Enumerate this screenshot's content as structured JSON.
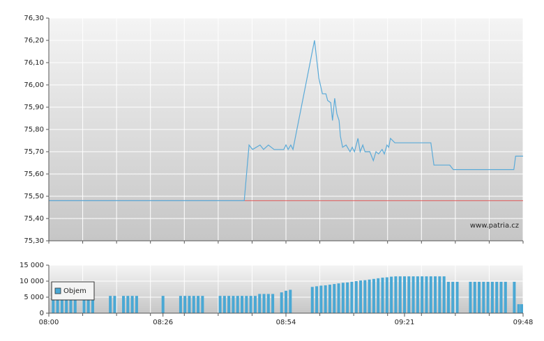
{
  "chart_data": [
    {
      "type": "line",
      "watermark": "www.patria.cz",
      "xlim": [
        0,
        108
      ],
      "ylim": [
        75.3,
        76.3
      ],
      "yticks": [
        {
          "value": 75.3,
          "label": "75,30"
        },
        {
          "value": 75.4,
          "label": "75,40"
        },
        {
          "value": 75.5,
          "label": "75,50"
        },
        {
          "value": 75.6,
          "label": "75,60"
        },
        {
          "value": 75.7,
          "label": "75,70"
        },
        {
          "value": 75.8,
          "label": "75,80"
        },
        {
          "value": 75.9,
          "label": "75,90"
        },
        {
          "value": 76.0,
          "label": "76,00"
        },
        {
          "value": 76.1,
          "label": "76,10"
        },
        {
          "value": 76.2,
          "label": "76,20"
        },
        {
          "value": 76.3,
          "label": "76,30"
        }
      ],
      "grid": true,
      "reference_line": {
        "value": 75.48,
        "color": "#e05a5a"
      },
      "x": [
        0,
        44.5,
        45.6,
        46.4,
        48.1,
        48.9,
        50.0,
        51.3,
        53.5,
        54.0,
        54.5,
        55.1,
        55.6,
        60.5,
        61.5,
        62.3,
        63.1,
        63.5,
        64.2,
        64.6,
        65.1,
        65.6,
        66.1,
        66.4,
        66.9,
        67.7,
        68.6,
        69.1,
        69.6,
        70.4,
        70.9,
        71.5,
        72.0,
        73.1,
        73.9,
        74.5,
        75.1,
        75.9,
        76.4,
        77.0,
        77.4,
        77.8,
        78.8,
        87.0,
        87.7,
        91.3,
        92.1,
        105.9,
        106.3,
        108
      ],
      "series": [
        {
          "color": "#5aaad8",
          "values": [
            75.48,
            75.48,
            75.73,
            75.71,
            75.73,
            75.71,
            75.73,
            75.71,
            75.71,
            75.73,
            75.71,
            75.73,
            75.71,
            76.2,
            76.03,
            75.96,
            75.96,
            75.93,
            75.92,
            75.84,
            75.94,
            75.87,
            75.84,
            75.77,
            75.72,
            75.73,
            75.7,
            75.72,
            75.7,
            75.76,
            75.7,
            75.73,
            75.7,
            75.7,
            75.66,
            75.7,
            75.69,
            75.71,
            75.69,
            75.73,
            75.72,
            75.76,
            75.74,
            75.74,
            75.64,
            75.64,
            75.62,
            75.62,
            75.68,
            75.68
          ]
        }
      ]
    },
    {
      "type": "bar",
      "xlim": [
        0,
        108
      ],
      "ylim": [
        0,
        15000
      ],
      "yticks": [
        0,
        {
          "value": 5000,
          "label": "5 000"
        },
        {
          "value": 10000,
          "label": "10 000"
        },
        {
          "value": 15000,
          "label": "15 000"
        }
      ],
      "xticks": [
        {
          "value": 0,
          "label": "08:00"
        },
        {
          "value": 26,
          "label": "08:26"
        },
        {
          "value": 54,
          "label": "08:54"
        },
        {
          "value": 81,
          "label": "09:21"
        },
        {
          "value": 108,
          "label": "09:48"
        }
      ],
      "grid": true,
      "legend": "top-left",
      "x": [
        1,
        2,
        3,
        4,
        5,
        6,
        8,
        9,
        10,
        14,
        15,
        17,
        18,
        19,
        20,
        26,
        30,
        31,
        32,
        33,
        34,
        35,
        39,
        40,
        41,
        42,
        43,
        44,
        45,
        46,
        47,
        48,
        49,
        50,
        51,
        53,
        54,
        55,
        60,
        61,
        62,
        63,
        64,
        65,
        66,
        67,
        68,
        69,
        70,
        71,
        72,
        73,
        74,
        75,
        76,
        77,
        78,
        79,
        80,
        81,
        82,
        83,
        84,
        85,
        86,
        87,
        88,
        89,
        90,
        91,
        92,
        93,
        96,
        97,
        98,
        99,
        100,
        101,
        102,
        103,
        104,
        106,
        107,
        108
      ],
      "series": [
        {
          "name": "Objem",
          "color": "#4aa8d4",
          "values": [
            5400,
            5400,
            5400,
            5400,
            5400,
            5400,
            5400,
            5400,
            5400,
            5400,
            5400,
            5400,
            5400,
            5400,
            5400,
            5400,
            5400,
            5400,
            5400,
            5400,
            5400,
            5400,
            5400,
            5400,
            5400,
            5400,
            5400,
            5400,
            5400,
            5400,
            5400,
            6000,
            6000,
            6000,
            6000,
            6500,
            7000,
            7300,
            8200,
            8400,
            8600,
            8700,
            8900,
            9100,
            9300,
            9500,
            9600,
            9800,
            10000,
            10200,
            10300,
            10500,
            10700,
            10900,
            11100,
            11200,
            11400,
            11500,
            11500,
            11500,
            11500,
            11500,
            11500,
            11500,
            11500,
            11500,
            11500,
            11500,
            11500,
            9800,
            9800,
            9800,
            9800,
            9800,
            9800,
            9800,
            9800,
            9800,
            9800,
            9800,
            9800,
            9800,
            2800,
            2800
          ]
        }
      ]
    }
  ]
}
